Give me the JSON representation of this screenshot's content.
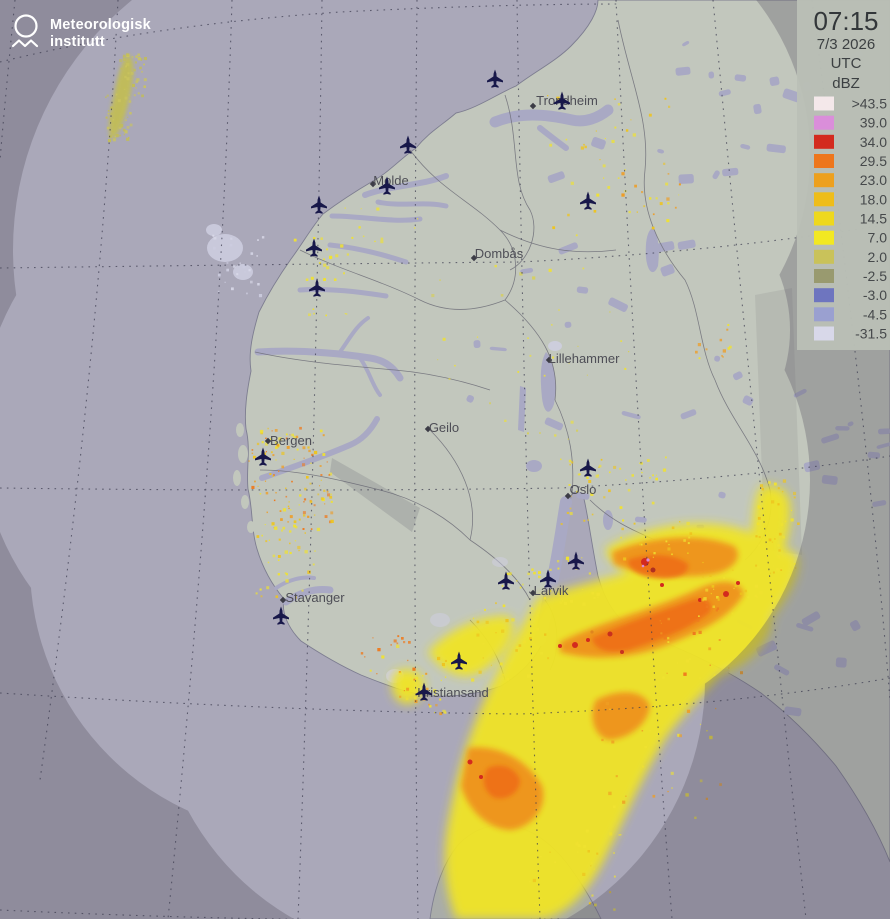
{
  "branding": {
    "line1": "Meteorologisk",
    "line2": "institutt"
  },
  "clock": {
    "time": "07:15",
    "date": "7/3 2026",
    "timezone": "UTC"
  },
  "legend": {
    "unit": "dBZ",
    "rows": [
      {
        "label": ">43.5",
        "color": "#f4e8ea"
      },
      {
        "label": "39.0",
        "color": "#da8eda"
      },
      {
        "label": "34.0",
        "color": "#d32a1e"
      },
      {
        "label": "29.5",
        "color": "#ee761c"
      },
      {
        "label": "23.0",
        "color": "#eda01e"
      },
      {
        "label": "18.0",
        "color": "#eebd1a"
      },
      {
        "label": "14.5",
        "color": "#eed81e"
      },
      {
        "label": "7.0",
        "color": "#f2e822"
      },
      {
        "label": "2.0",
        "color": "#c9c25a"
      },
      {
        "label": "-2.5",
        "color": "#999a6f"
      },
      {
        "label": "-3.0",
        "color": "#6e75bf"
      },
      {
        "label": "-4.5",
        "color": "#9aa0d0"
      },
      {
        "label": "-31.5",
        "color": "#d8d8e9"
      }
    ]
  },
  "map": {
    "cities": [
      {
        "name": "Trondheim"
      },
      {
        "name": "Molde"
      },
      {
        "name": "Dombås"
      },
      {
        "name": "Lillehammer"
      },
      {
        "name": "Geilo"
      },
      {
        "name": "Bergen"
      },
      {
        "name": "Oslo"
      },
      {
        "name": "Stavanger"
      },
      {
        "name": "Larvik"
      },
      {
        "name": "Kristiansand"
      }
    ]
  },
  "colors": {
    "sea_in_radar": "#aaa8b9",
    "sea_out_radar": "#8e8b9a",
    "land_in_radar": "#c2c7bd",
    "land_out_radar": "#a9aca3",
    "lakes_fjords": "#a9a9c4",
    "panel": "#bac0b6"
  }
}
